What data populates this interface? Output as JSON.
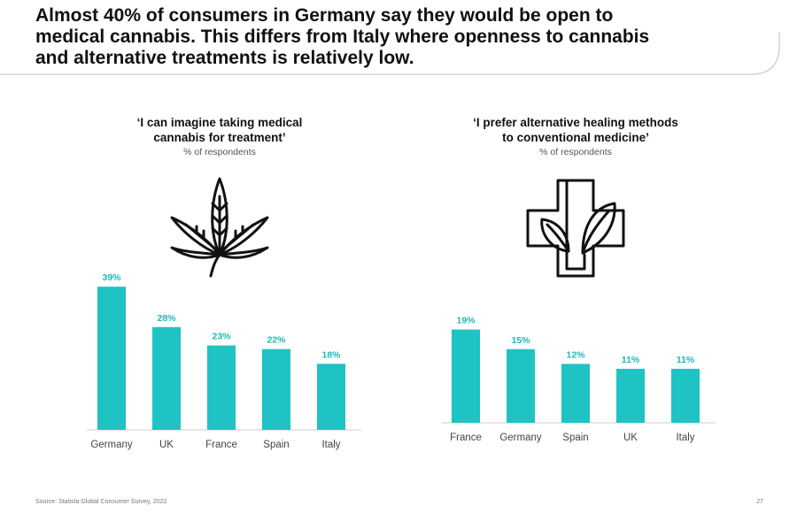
{
  "headline": {
    "lines": [
      "Almost 40% of consumers in Germany say they would be open to",
      "medical cannabis. This differs from Italy where openness to cannabis",
      "and alternative treatments is relatively low."
    ]
  },
  "colors": {
    "bar": "#1fc3c3",
    "label": "#1fb8b8",
    "axis": "#cfcfcf",
    "curve": "#cccccc"
  },
  "icons": {
    "left": "cannabis-leaf-icon",
    "right": "medical-cross-plant-icon"
  },
  "chart_data": [
    {
      "type": "bar",
      "title_lines": [
        "‘I can imagine taking medical",
        "cannabis for treatment’"
      ],
      "subtitle": "% of respondents",
      "categories": [
        "Germany",
        "UK",
        "France",
        "Spain",
        "Italy"
      ],
      "values": [
        39,
        28,
        23,
        22,
        18
      ],
      "value_labels": [
        "39%",
        "28%",
        "23%",
        "22%",
        "18%"
      ],
      "ylim": [
        0,
        40
      ],
      "xlabel": "",
      "ylabel": ""
    },
    {
      "type": "bar",
      "title_lines": [
        "‘I prefer alternative healing methods",
        "to conventional medicine’"
      ],
      "subtitle": "% of respondents",
      "categories": [
        "France",
        "Germany",
        "Spain",
        "UK",
        "Italy"
      ],
      "values": [
        19,
        15,
        12,
        11,
        11
      ],
      "value_labels": [
        "19%",
        "15%",
        "12%",
        "11%",
        "11%"
      ],
      "ylim": [
        0,
        40
      ],
      "xlabel": "",
      "ylabel": ""
    }
  ],
  "footer": {
    "source": "Source: Statista Global Consumer Survey, 2022",
    "page_number": "27"
  }
}
